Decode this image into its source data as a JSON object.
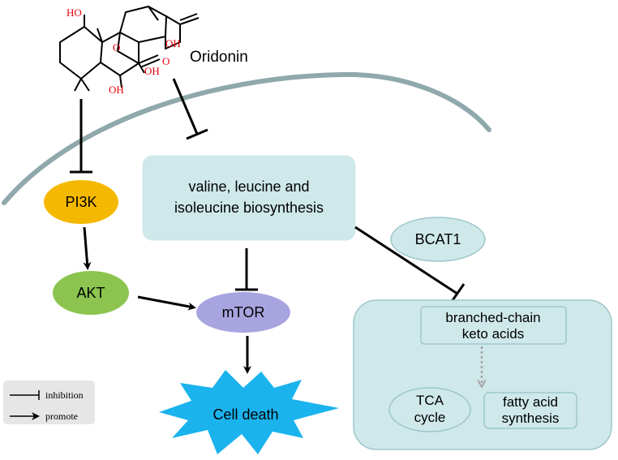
{
  "compound": {
    "name": "Oridonin",
    "atom_labels": {
      "ho_top": "HO",
      "oh_right": "OH",
      "o_ring": "O",
      "o_keto": "O",
      "oh_mid": "OH",
      "oh_bottom": "OH"
    }
  },
  "nodes": {
    "pi3k": "PI3K",
    "akt": "AKT",
    "mtor": "mTOR",
    "bcat1": "BCAT1",
    "biosynthesis_line1": "valine, leucine and",
    "biosynthesis_line2": "isoleucine biosynthesis",
    "bcka_line1": "branched-chain",
    "bcka_line2": "keto acids",
    "tca_line1": "TCA",
    "tca_line2": "cycle",
    "fatty_line1": "fatty acid",
    "fatty_line2": "synthesis",
    "cell_death": "Cell death"
  },
  "legend": {
    "inhibition": "inhibition",
    "promote": "promote"
  },
  "colors": {
    "membrane": "#8fa8ac",
    "pi3k": "#f5b800",
    "akt": "#8cc44f",
    "mtor": "#a8a4e0",
    "box_fill": "#cfe8ea",
    "box_stroke": "#9ec7cb",
    "cell_death": "#1ab3ee",
    "legend_bg": "#e6e6e6",
    "dashed_arrow": "#a5a5a5",
    "atom_red": "#e8000b"
  }
}
